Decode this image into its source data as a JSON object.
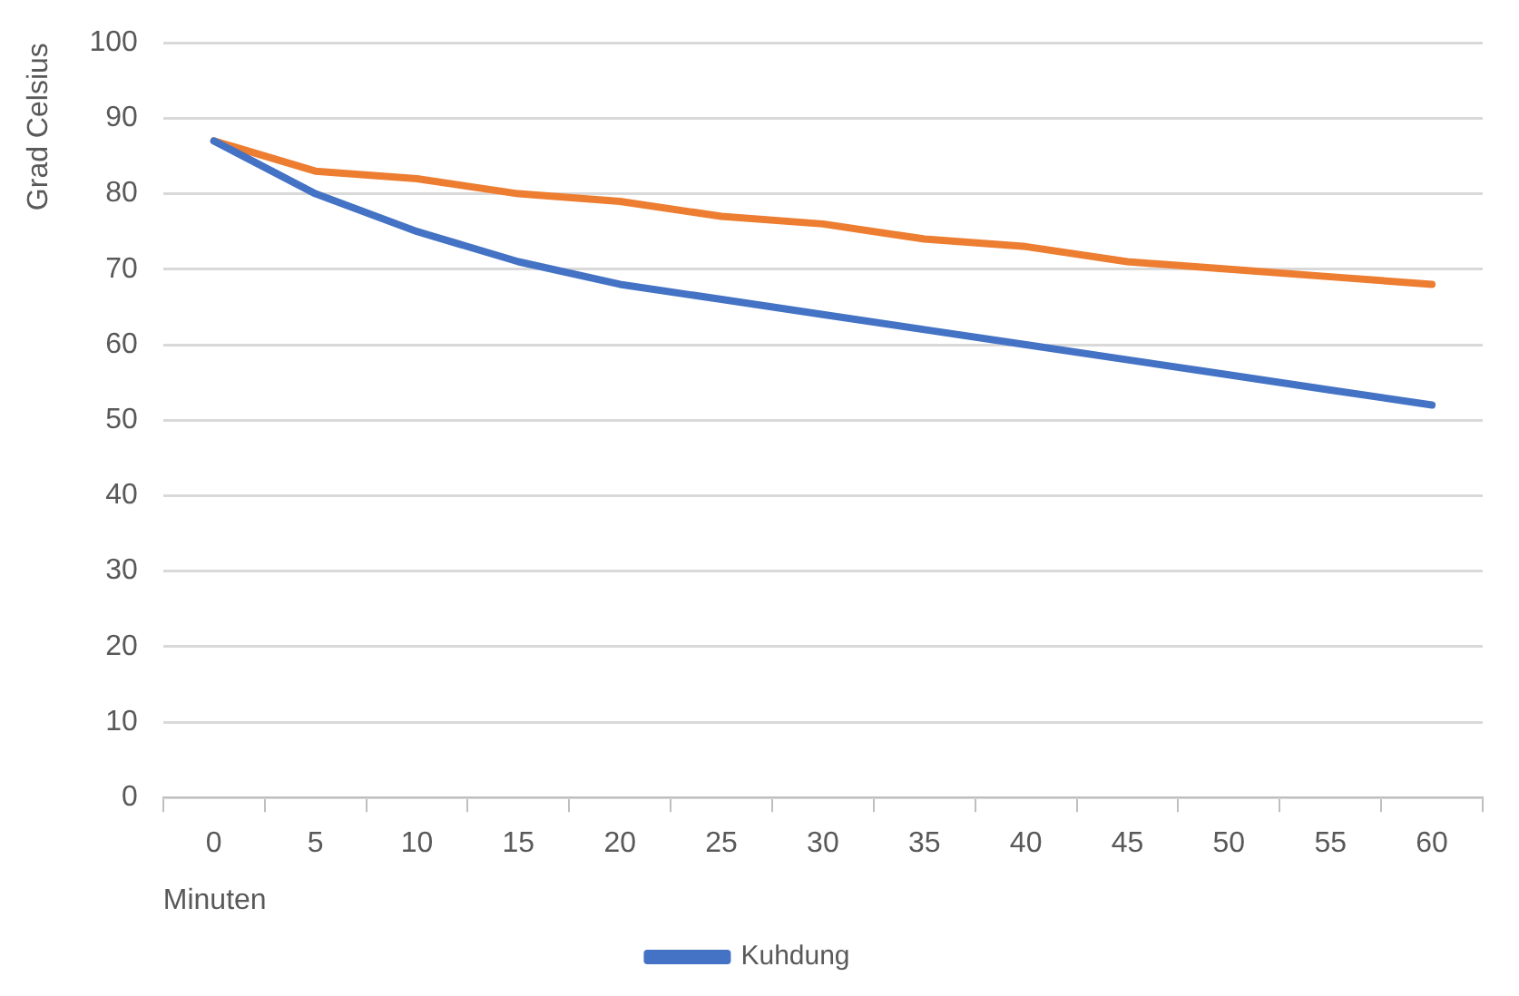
{
  "chart_data": {
    "type": "line",
    "xlabel": "Minuten",
    "ylabel": "Grad Celsius",
    "categories": [
      "0",
      "5",
      "10",
      "15",
      "20",
      "25",
      "30",
      "35",
      "40",
      "45",
      "50",
      "55",
      "60"
    ],
    "series": [
      {
        "name": "Kuhdung",
        "color": "#4472c4",
        "values": [
          87,
          80,
          75,
          71,
          68,
          66,
          64,
          62,
          60,
          58,
          56,
          54,
          52
        ]
      },
      {
        "color": "#ed7d31",
        "values": [
          87,
          83,
          82,
          80,
          79,
          77,
          76,
          74,
          73,
          71,
          70,
          69,
          68
        ]
      }
    ],
    "ylim": [
      0,
      100
    ],
    "yticks": [
      0,
      10,
      20,
      30,
      40,
      50,
      60,
      70,
      80,
      90,
      100
    ],
    "grid": "y",
    "legend": "bottom",
    "marker": "none",
    "line_style": "solid"
  }
}
